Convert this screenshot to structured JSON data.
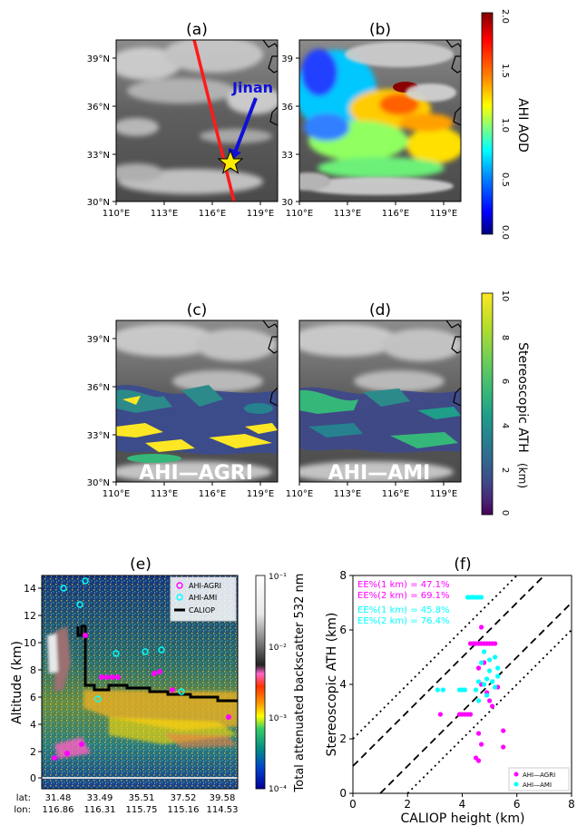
{
  "panels": {
    "a": {
      "label": "(a)",
      "annotation": "Jinan"
    },
    "b": {
      "label": "(b)"
    },
    "c": {
      "label": "(c)",
      "overlay": "AHI—AGRI"
    },
    "d": {
      "label": "(d)",
      "overlay": "AHI—AMI"
    },
    "e": {
      "label": "(e)"
    },
    "f": {
      "label": "(f)"
    }
  },
  "map_axes": {
    "x_ticks": [
      "110°E",
      "113°E",
      "116°E",
      "119°E"
    ],
    "y_ticks_left": [
      "39°N",
      "36°N",
      "33°N",
      "30°N"
    ],
    "y_ticks_right": [
      "39",
      "36",
      "33",
      "30"
    ]
  },
  "colorbar_aod": {
    "label": "AHI AOD",
    "ticks": [
      "2.0",
      "1.5",
      "1.0",
      "0.5",
      "0.0"
    ],
    "colors": [
      "#800000",
      "#ff0000",
      "#ff8c00",
      "#ffff00",
      "#7fff7f",
      "#00ffff",
      "#0080ff",
      "#0000ff",
      "#00007f"
    ]
  },
  "colorbar_ath": {
    "label": "Stereoscopic ATH",
    "unit": "(km)",
    "ticks": [
      "10",
      "8",
      "6",
      "4",
      "2",
      "0"
    ],
    "colors": [
      "#fde725",
      "#b5de2b",
      "#6ece58",
      "#35b779",
      "#1f9e89",
      "#26828e",
      "#31688e",
      "#3e4989",
      "#482878",
      "#440154"
    ]
  },
  "curtain": {
    "ylabel": "Altitude (km)",
    "y_ticks": [
      "14",
      "12",
      "10",
      "8",
      "6",
      "4",
      "2",
      "0"
    ],
    "lat_label": "lat:",
    "lon_label": "lon:",
    "lat_ticks": [
      "31.48",
      "33.49",
      "35.51",
      "37.52",
      "39.58"
    ],
    "lon_ticks": [
      "116.86",
      "116.31",
      "115.75",
      "115.16",
      "114.53"
    ],
    "legend": [
      "AHI-AGRI",
      "AHI-AMI",
      "CALIOP"
    ],
    "colorbar_label": "Total attenuated backscatter 532 nm",
    "colorbar_ticks": [
      "10⁻¹",
      "10⁻²",
      "10⁻³",
      "10⁻⁴"
    ],
    "colors": {
      "agri": "#ff00ff",
      "ami": "#00ffff",
      "caliop": "#000000"
    }
  },
  "chart_data": {
    "type": "scatter",
    "xlabel": "CALIOP height (km)",
    "ylabel": "Stereoscopic ATH (km)",
    "xlim": [
      0,
      8
    ],
    "ylim": [
      0,
      8
    ],
    "x_ticks": [
      "0",
      "2",
      "4",
      "6",
      "8"
    ],
    "y_ticks": [
      "0",
      "2",
      "4",
      "6",
      "8"
    ],
    "legend_position": "bottom-right",
    "annotations": [
      {
        "text": "EE%(1 km) = 47.1%",
        "color": "#ff00ff"
      },
      {
        "text": "EE%(2 km) = 69.1%",
        "color": "#ff00ff"
      },
      {
        "text": "EE%(1 km) = 45.8%",
        "color": "#00ffff"
      },
      {
        "text": "EE%(2 km) = 76.4%",
        "color": "#00ffff"
      }
    ],
    "series": [
      {
        "name": "AHI—AGRI",
        "color": "#ff00ff",
        "points": [
          [
            3.2,
            2.9
          ],
          [
            3.9,
            2.9
          ],
          [
            4.0,
            2.9
          ],
          [
            4.1,
            2.9
          ],
          [
            4.2,
            2.9
          ],
          [
            4.3,
            2.9
          ],
          [
            4.5,
            1.3
          ],
          [
            4.6,
            1.2
          ],
          [
            4.6,
            2.2
          ],
          [
            4.7,
            1.8
          ],
          [
            4.6,
            5.5
          ],
          [
            4.7,
            5.5
          ],
          [
            4.8,
            5.5
          ],
          [
            4.9,
            5.5
          ],
          [
            5.0,
            5.5
          ],
          [
            5.1,
            5.5
          ],
          [
            5.2,
            5.5
          ],
          [
            4.4,
            5.5
          ],
          [
            4.5,
            5.5
          ],
          [
            4.3,
            5.5
          ],
          [
            4.7,
            6.1
          ],
          [
            4.6,
            4.6
          ],
          [
            4.8,
            4.8
          ],
          [
            5.3,
            3.9
          ],
          [
            5.1,
            3.2
          ],
          [
            5.5,
            2.3
          ],
          [
            5.5,
            1.7
          ],
          [
            4.7,
            4.0
          ],
          [
            5.0,
            3.4
          ],
          [
            4.9,
            3.7
          ]
        ]
      },
      {
        "name": "AHI—AMI",
        "color": "#00ffff",
        "points": [
          [
            3.1,
            3.8
          ],
          [
            3.3,
            3.8
          ],
          [
            3.9,
            3.8
          ],
          [
            4.0,
            3.8
          ],
          [
            4.1,
            3.8
          ],
          [
            4.2,
            7.2
          ],
          [
            4.3,
            7.2
          ],
          [
            4.4,
            7.2
          ],
          [
            4.5,
            7.2
          ],
          [
            4.6,
            7.2
          ],
          [
            4.7,
            7.2
          ],
          [
            4.8,
            4.0
          ],
          [
            4.9,
            4.2
          ],
          [
            5.0,
            4.5
          ],
          [
            5.1,
            4.1
          ],
          [
            5.2,
            3.9
          ],
          [
            5.3,
            4.3
          ],
          [
            4.9,
            3.6
          ],
          [
            4.7,
            4.8
          ],
          [
            4.6,
            3.4
          ],
          [
            4.8,
            5.2
          ],
          [
            5.0,
            4.9
          ],
          [
            5.2,
            5.0
          ],
          [
            5.3,
            4.6
          ],
          [
            4.6,
            4.1
          ],
          [
            4.5,
            3.8
          ]
        ]
      }
    ]
  }
}
